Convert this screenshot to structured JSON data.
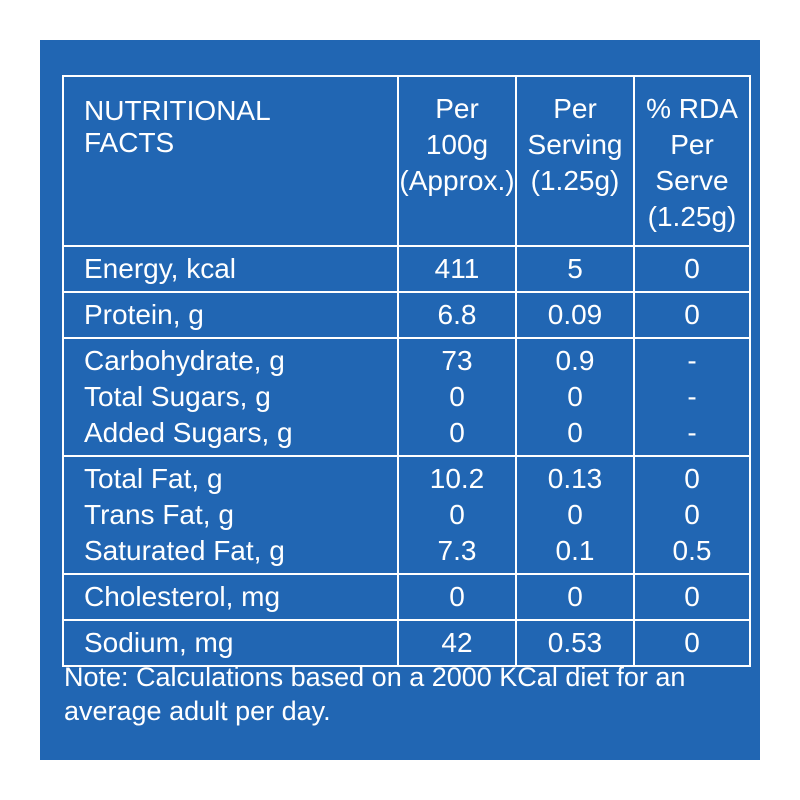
{
  "header": {
    "name_line1": "NUTRITIONAL",
    "name_line2": "FACTS",
    "per100_line1": "Per",
    "per100_line2": "100g",
    "per100_line3": "(Approx.)",
    "serving_line1": "Per",
    "serving_line2": "Serving",
    "serving_line3": "(1.25g)",
    "rda_line1": "% RDA",
    "rda_line2": "Per",
    "rda_line3": "Serve",
    "rda_line4": "(1.25g)"
  },
  "groups": [
    {
      "rows": [
        {
          "name": "Energy, kcal",
          "per100": "411",
          "serving": "5",
          "rda": "0"
        }
      ]
    },
    {
      "rows": [
        {
          "name": "Protein, g",
          "per100": "6.8",
          "serving": "0.09",
          "rda": "0"
        }
      ]
    },
    {
      "rows": [
        {
          "name": "Carbohydrate, g",
          "per100": "73",
          "serving": "0.9",
          "rda": "-"
        },
        {
          "name": "Total Sugars, g",
          "per100": "0",
          "serving": "0",
          "rda": "-"
        },
        {
          "name": "Added Sugars, g",
          "per100": "0",
          "serving": "0",
          "rda": "-"
        }
      ]
    },
    {
      "rows": [
        {
          "name": "Total Fat, g",
          "per100": "10.2",
          "serving": "0.13",
          "rda": "0"
        },
        {
          "name": "Trans Fat, g",
          "per100": "0",
          "serving": "0",
          "rda": "0"
        },
        {
          "name": "Saturated Fat, g",
          "per100": "7.3",
          "serving": "0.1",
          "rda": "0.5"
        }
      ]
    },
    {
      "rows": [
        {
          "name": "Cholesterol, mg",
          "per100": "0",
          "serving": "0",
          "rda": "0"
        }
      ]
    },
    {
      "rows": [
        {
          "name": "Sodium, mg",
          "per100": "42",
          "serving": "0.53",
          "rda": "0"
        }
      ]
    }
  ],
  "note": {
    "line1": "Note: Calculations based on a 2000 KCal diet for an",
    "line2": "average adult per day."
  },
  "colors": {
    "background": "#2166b3",
    "text": "#ffffff"
  }
}
